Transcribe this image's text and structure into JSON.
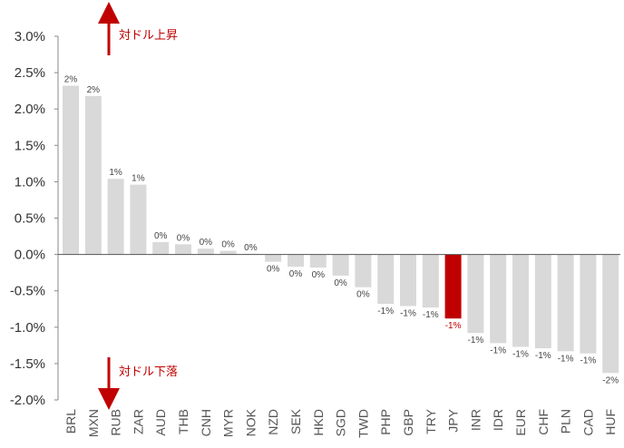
{
  "chart_data": {
    "type": "bar",
    "title": "",
    "xlabel": "",
    "ylabel": "",
    "ylim": [
      -2.0,
      3.0
    ],
    "yticks": [
      "3.0%",
      "2.5%",
      "2.0%",
      "1.5%",
      "1.0%",
      "0.5%",
      "0.0%",
      "-0.5%",
      "-1.0%",
      "-1.5%",
      "-2.0%"
    ],
    "ytick_values": [
      3.0,
      2.5,
      2.0,
      1.5,
      1.0,
      0.5,
      0.0,
      -0.5,
      -1.0,
      -1.5,
      -2.0
    ],
    "categories": [
      "BRL",
      "MXN",
      "RUB",
      "ZAR",
      "AUD",
      "THB",
      "CNH",
      "MYR",
      "NOK",
      "NZD",
      "SEK",
      "HKD",
      "SGD",
      "TWD",
      "PHP",
      "GBP",
      "TRY",
      "JPY",
      "INR",
      "IDR",
      "EUR",
      "CHF",
      "PLN",
      "CAD",
      "HUF"
    ],
    "values": [
      2.32,
      2.18,
      1.04,
      0.96,
      0.17,
      0.14,
      0.08,
      0.05,
      0.01,
      -0.1,
      -0.17,
      -0.18,
      -0.29,
      -0.45,
      -0.68,
      -0.71,
      -0.73,
      -0.88,
      -1.08,
      -1.22,
      -1.27,
      -1.29,
      -1.33,
      -1.36,
      -1.63
    ],
    "data_labels": [
      "2%",
      "2%",
      "1%",
      "1%",
      "0%",
      "0%",
      "0%",
      "0%",
      "0%",
      "0%",
      "0%",
      "0%",
      "0%",
      "0%",
      "-1%",
      "-1%",
      "-1%",
      "-1%",
      "-1%",
      "-1%",
      "-1%",
      "-1%",
      "-1%",
      "-1%",
      "-2%"
    ],
    "highlight": "JPY",
    "colors": {
      "bar": "#d9d9d9",
      "highlight": "#c00000",
      "axis": "#888888",
      "annotation": "#c00000"
    },
    "annotations": {
      "up": "対ドル上昇",
      "down": "対ドル下落"
    }
  }
}
